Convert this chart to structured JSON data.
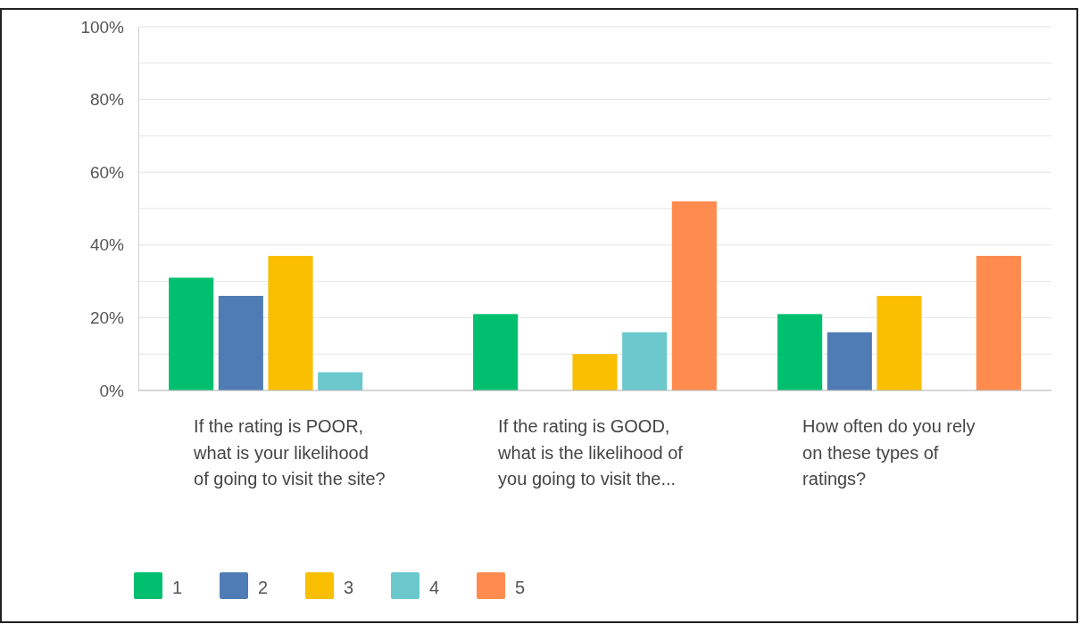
{
  "chart_data": {
    "type": "bar",
    "categories": [
      "If the rating is POOR, what is your likelihood of going to visit the site?",
      "If the rating is GOOD, what is the likelihood of you going to visit the...",
      "How often do you rely on these types of ratings?"
    ],
    "series": [
      {
        "name": "1",
        "color": "#00bf6f",
        "values": [
          31,
          21,
          21
        ]
      },
      {
        "name": "2",
        "color": "#507cb6",
        "values": [
          26,
          0,
          16
        ]
      },
      {
        "name": "3",
        "color": "#f9be00",
        "values": [
          37,
          10,
          26
        ]
      },
      {
        "name": "4",
        "color": "#6bc8cd",
        "values": [
          5,
          16,
          0
        ]
      },
      {
        "name": "5",
        "color": "#ff8b4f",
        "values": [
          0,
          52,
          37
        ]
      }
    ],
    "ylim": [
      0,
      100
    ],
    "yticks": [
      {
        "value": 0,
        "label": "0%"
      },
      {
        "value": 10,
        "label": null
      },
      {
        "value": 20,
        "label": "20%"
      },
      {
        "value": 30,
        "label": null
      },
      {
        "value": 40,
        "label": "40%"
      },
      {
        "value": 50,
        "label": null
      },
      {
        "value": 60,
        "label": "60%"
      },
      {
        "value": 70,
        "label": null
      },
      {
        "value": 80,
        "label": "80%"
      },
      {
        "value": 90,
        "label": null
      },
      {
        "value": 100,
        "label": "100%"
      }
    ],
    "grid": true,
    "legend": "bottom left"
  }
}
